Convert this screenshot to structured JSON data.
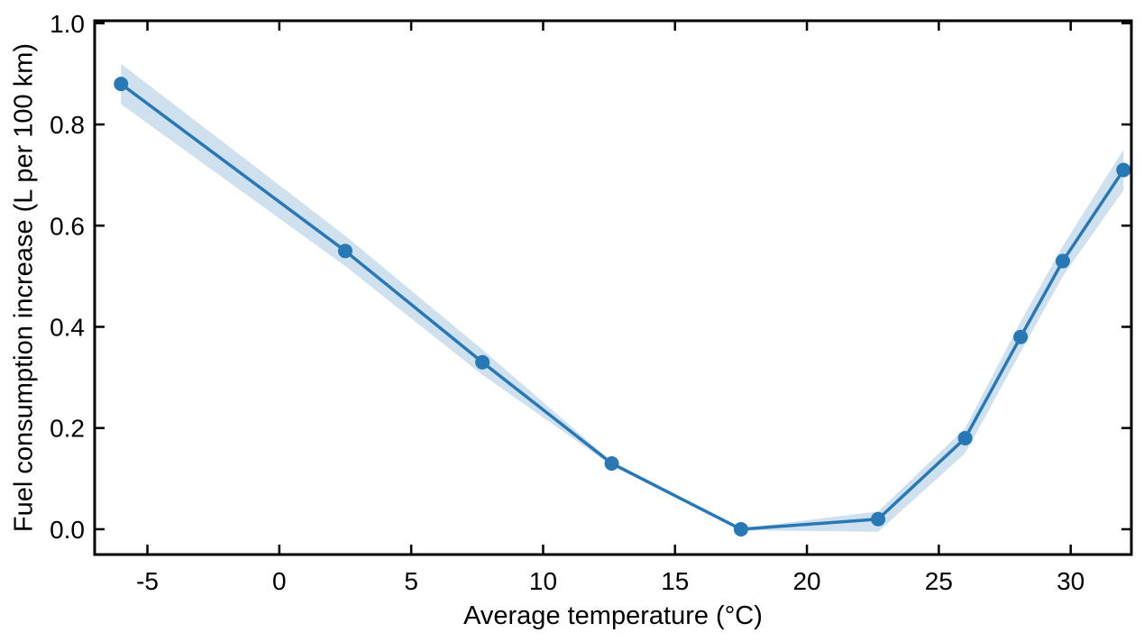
{
  "figure": {
    "background": "#ffffff"
  },
  "chart_data": {
    "type": "line",
    "title": "",
    "xlabel": "Average temperature (°C)",
    "ylabel": "Fuel consumption increase (L per 100 km)",
    "x": [
      -6.0,
      2.5,
      7.7,
      12.6,
      17.5,
      22.7,
      26.0,
      28.1,
      29.7,
      32.0
    ],
    "series": [
      {
        "name": "fuel-consumption-increase",
        "values": [
          0.88,
          0.55,
          0.33,
          0.13,
          0.0,
          0.02,
          0.18,
          0.38,
          0.53,
          0.71
        ]
      }
    ],
    "band": {
      "name": "confidence-band",
      "upper": [
        0.92,
        0.58,
        0.355,
        0.134,
        0.002,
        0.035,
        0.2,
        0.41,
        0.56,
        0.75
      ],
      "lower": [
        0.84,
        0.52,
        0.305,
        0.126,
        -0.002,
        -0.005,
        0.15,
        0.35,
        0.5,
        0.67
      ]
    },
    "xlim": [
      -7.0,
      32.3
    ],
    "ylim": [
      -0.05,
      1.005
    ],
    "xticks": [
      -5,
      0,
      5,
      10,
      15,
      20,
      25,
      30
    ],
    "xtick_labels": [
      "-5",
      "0",
      "5",
      "10",
      "15",
      "20",
      "25",
      "30"
    ],
    "yticks": [
      0.0,
      0.2,
      0.4,
      0.6,
      0.8,
      1.0
    ],
    "ytick_labels": [
      "0.0",
      "0.2",
      "0.4",
      "0.6",
      "0.8",
      "1.0"
    ],
    "grid": false,
    "legend": null,
    "marker": "circle",
    "colors": {
      "line": "#2878b5",
      "marker": "#2878b5",
      "band": "#cfe1ee",
      "axis": "#000000",
      "text": "#000000"
    }
  }
}
